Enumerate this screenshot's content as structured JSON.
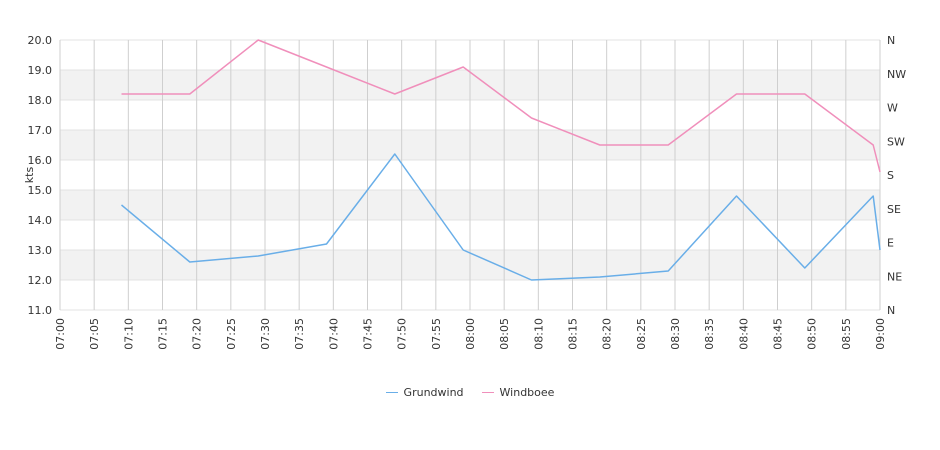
{
  "chart_data": {
    "type": "line",
    "ylabel": "kts",
    "ylim": [
      11,
      20
    ],
    "y_ticks": [
      "11.0",
      "12.0",
      "13.0",
      "14.0",
      "15.0",
      "16.0",
      "17.0",
      "18.0",
      "19.0",
      "20.0"
    ],
    "x_ticks": [
      "07:00",
      "07:05",
      "07:10",
      "07:15",
      "07:20",
      "07:25",
      "07:30",
      "07:35",
      "07:40",
      "07:45",
      "07:50",
      "07:55",
      "08:00",
      "08:05",
      "08:10",
      "08:15",
      "08:20",
      "08:25",
      "08:30",
      "08:35",
      "08:40",
      "08:45",
      "08:50",
      "08:55",
      "09:00"
    ],
    "right_axis_labels": [
      "N",
      "NE",
      "E",
      "SE",
      "S",
      "SW",
      "W",
      "NW",
      "N"
    ],
    "grid": true,
    "legend_position": "bottom",
    "series": [
      {
        "name": "Grundwind",
        "color": "#69aee8",
        "x": [
          "07:09",
          "07:19",
          "07:29",
          "07:39",
          "07:49",
          "07:59",
          "08:09",
          "08:19",
          "08:29",
          "08:39",
          "08:49",
          "08:59",
          "09:00"
        ],
        "values": [
          14.5,
          12.6,
          12.8,
          13.2,
          16.2,
          13.0,
          12.0,
          12.1,
          12.3,
          14.8,
          12.4,
          14.8,
          13.0
        ]
      },
      {
        "name": "Windboee",
        "color": "#f08fbb",
        "x": [
          "07:09",
          "07:19",
          "07:29",
          "07:39",
          "07:49",
          "07:59",
          "08:09",
          "08:19",
          "08:29",
          "08:39",
          "08:49",
          "08:59",
          "09:00"
        ],
        "values": [
          18.2,
          18.2,
          20.0,
          19.1,
          18.2,
          19.1,
          17.4,
          16.5,
          16.5,
          18.2,
          18.2,
          16.5,
          15.6
        ]
      }
    ]
  }
}
